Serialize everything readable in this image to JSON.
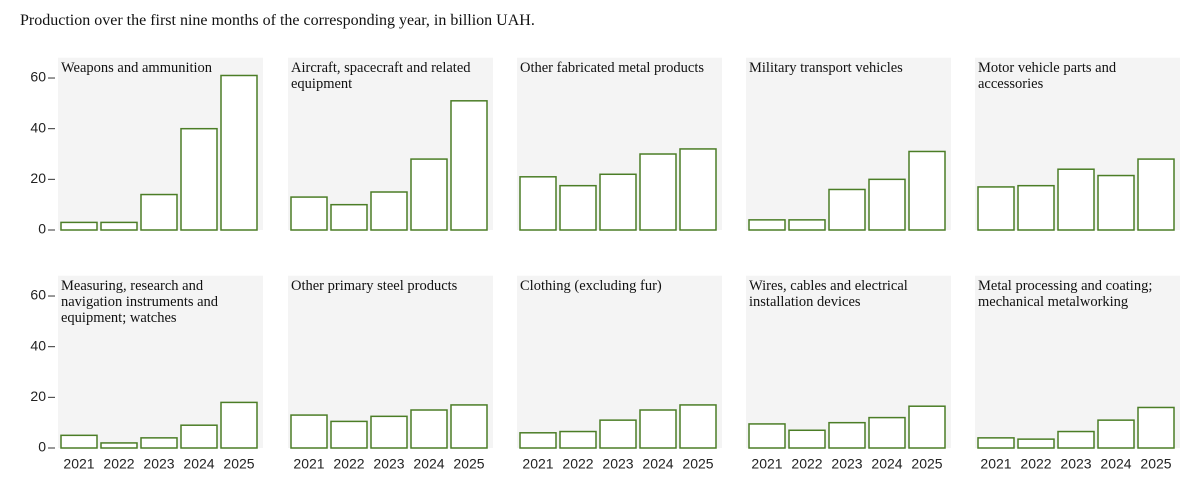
{
  "title": "Production over the first nine months of the corresponding year, in billion UAH.",
  "chart_data": [
    {
      "type": "bar",
      "title": "Weapons and ammunition",
      "categories": [
        null,
        null,
        null,
        null,
        null
      ],
      "values": [
        3,
        3,
        14,
        40,
        61
      ],
      "color": "#4b7d26",
      "ylim": [
        0,
        68
      ],
      "yticks": [
        0,
        20,
        40,
        60
      ]
    },
    {
      "type": "bar",
      "title": "Aircraft, spacecraft and related equipment",
      "categories": [
        null,
        null,
        null,
        null,
        null
      ],
      "values": [
        13,
        10,
        15,
        28,
        51
      ],
      "color": "#4b7d26",
      "ylim": [
        0,
        68
      ]
    },
    {
      "type": "bar",
      "title": "Other fabricated metal products",
      "categories": [
        null,
        null,
        null,
        null,
        null
      ],
      "values": [
        21,
        17.5,
        22,
        30,
        32
      ],
      "color": "#4b7d26",
      "ylim": [
        0,
        68
      ]
    },
    {
      "type": "bar",
      "title": "Military transport vehicles",
      "categories": [
        null,
        null,
        null,
        null,
        null
      ],
      "values": [
        4,
        4,
        16,
        20,
        31
      ],
      "color": "#4b7d26",
      "ylim": [
        0,
        68
      ]
    },
    {
      "type": "bar",
      "title": "Motor vehicle parts and accessories",
      "categories": [
        null,
        null,
        null,
        null,
        null
      ],
      "values": [
        17,
        17.5,
        24,
        21.5,
        28
      ],
      "color": "#4b7d26",
      "ylim": [
        0,
        68
      ]
    },
    {
      "type": "bar",
      "title": "Measuring, research and navigation instruments and equipment; watches",
      "categories": [
        "2021",
        "2022",
        "2023",
        "2024",
        "2025"
      ],
      "values": [
        5,
        2,
        4,
        9,
        18
      ],
      "color": "#4b7d26",
      "ylim": [
        0,
        68
      ],
      "yticks": [
        0,
        20,
        40,
        60
      ]
    },
    {
      "type": "bar",
      "title": "Other primary steel products",
      "categories": [
        "2021",
        "2022",
        "2023",
        "2024",
        "2025"
      ],
      "values": [
        13,
        10.5,
        12.5,
        15,
        17
      ],
      "color": "#4b7d26",
      "ylim": [
        0,
        68
      ]
    },
    {
      "type": "bar",
      "title": "Clothing (excluding fur)",
      "categories": [
        "2021",
        "2022",
        "2023",
        "2024",
        "2025"
      ],
      "values": [
        6,
        6.5,
        11,
        15,
        17
      ],
      "color": "#4b7d26",
      "ylim": [
        0,
        68
      ]
    },
    {
      "type": "bar",
      "title": "Wires, cables and electrical installation devices",
      "categories": [
        "2021",
        "2022",
        "2023",
        "2024",
        "2025"
      ],
      "values": [
        9.5,
        7,
        10,
        12,
        16.5
      ],
      "color": "#4b7d26",
      "ylim": [
        0,
        68
      ]
    },
    {
      "type": "bar",
      "title": "Metal processing and coating; mechanical metalworking",
      "categories": [
        "2021",
        "2022",
        "2023",
        "2024",
        "2025"
      ],
      "values": [
        4,
        3.5,
        6.5,
        11,
        16
      ],
      "color": "#4b7d26",
      "ylim": [
        0,
        68
      ]
    }
  ]
}
